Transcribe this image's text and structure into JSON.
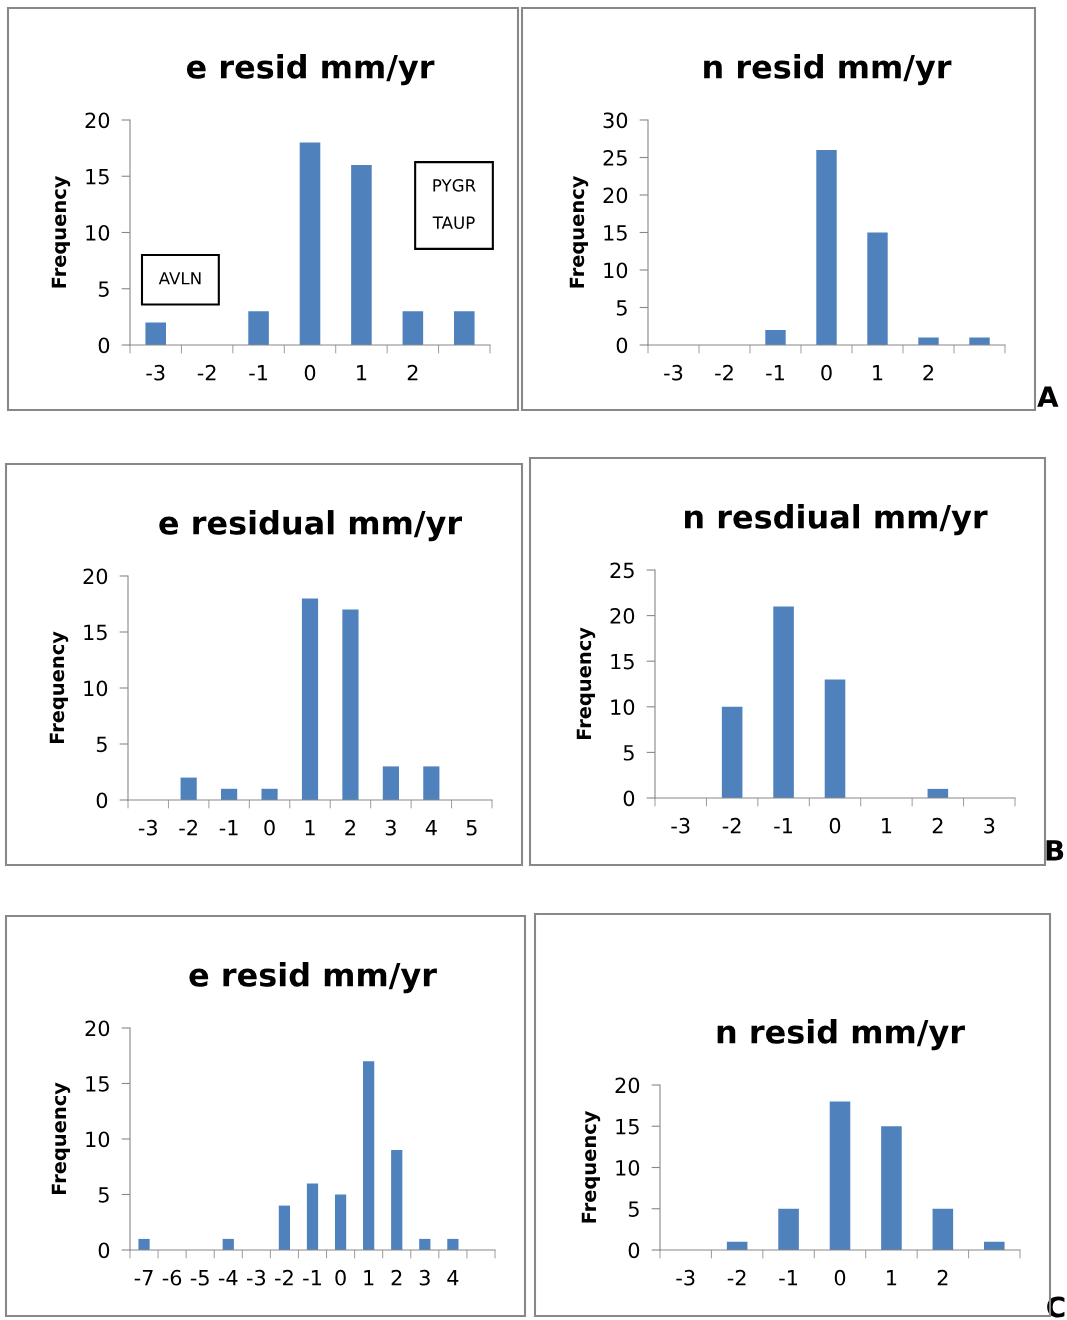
{
  "chart_data": [
    {
      "type": "bar",
      "title": "e resid mm/yr",
      "ylabel": "Frequency",
      "categories": [
        "-3",
        "-2",
        "-1",
        "0",
        "1",
        "2",
        null
      ],
      "values": [
        2,
        0,
        3,
        18,
        16,
        3,
        3
      ],
      "color": "#4f81bd",
      "ylim": [
        0,
        20
      ],
      "yticks": [
        0,
        5,
        10,
        15,
        20
      ],
      "grid": false,
      "legend": false,
      "annotations": [
        "AVLN",
        "PYGR\n\nTAUP"
      ]
    },
    {
      "type": "bar",
      "title": "n resid mm/yr",
      "ylabel": "Frequency",
      "categories": [
        "-3",
        "-2",
        "-1",
        "0",
        "1",
        "2",
        null
      ],
      "values": [
        0,
        0,
        2,
        26,
        15,
        1,
        1
      ],
      "color": "#4f81bd",
      "ylim": [
        0,
        30
      ],
      "yticks": [
        0,
        5,
        10,
        15,
        20,
        25,
        30
      ],
      "grid": false,
      "legend": false,
      "annotations": [
        "A"
      ]
    },
    {
      "type": "bar",
      "title": "e residual mm/yr",
      "ylabel": "Frequency",
      "categories": [
        "-3",
        "-2",
        "-1",
        "0",
        "1",
        "2",
        "3",
        "4",
        "5"
      ],
      "values": [
        0,
        2,
        1,
        1,
        18,
        17,
        3,
        3,
        0
      ],
      "color": "#4f81bd",
      "ylim": [
        0,
        20
      ],
      "yticks": [
        0,
        5,
        10,
        15,
        20
      ],
      "grid": false,
      "legend": false
    },
    {
      "type": "bar",
      "title": "n resdiual mm/yr",
      "ylabel": "Frequency",
      "categories": [
        "-3",
        "-2",
        "-1",
        "0",
        "1",
        "2",
        "3"
      ],
      "values": [
        0,
        10,
        21,
        13,
        0,
        1,
        0
      ],
      "color": "#4f81bd",
      "ylim": [
        0,
        25
      ],
      "yticks": [
        0,
        5,
        10,
        15,
        20,
        25
      ],
      "grid": false,
      "legend": false,
      "annotations": [
        "B"
      ]
    },
    {
      "type": "bar",
      "title": "e resid mm/yr",
      "ylabel": "Frequency",
      "categories": [
        "-7",
        "-6",
        "-5",
        "-4",
        "-3",
        "-2",
        "-1",
        "0",
        "1",
        "2",
        "3",
        "4",
        null
      ],
      "values": [
        1,
        0,
        0,
        1,
        0,
        4,
        6,
        5,
        17,
        9,
        1,
        1,
        0
      ],
      "color": "#4f81bd",
      "ylim": [
        0,
        20
      ],
      "yticks": [
        0,
        5,
        10,
        15,
        20
      ],
      "grid": false,
      "legend": false
    },
    {
      "type": "bar",
      "title": "n resid mm/yr",
      "ylabel": "Frequency",
      "categories": [
        "-3",
        "-2",
        "-1",
        "0",
        "1",
        "2",
        null
      ],
      "values": [
        0,
        1,
        5,
        18,
        15,
        5,
        1
      ],
      "color": "#4f81bd",
      "ylim": [
        0,
        20
      ],
      "yticks": [
        0,
        5,
        10,
        15,
        20
      ],
      "grid": false,
      "legend": false,
      "annotations": [
        "C"
      ]
    }
  ]
}
